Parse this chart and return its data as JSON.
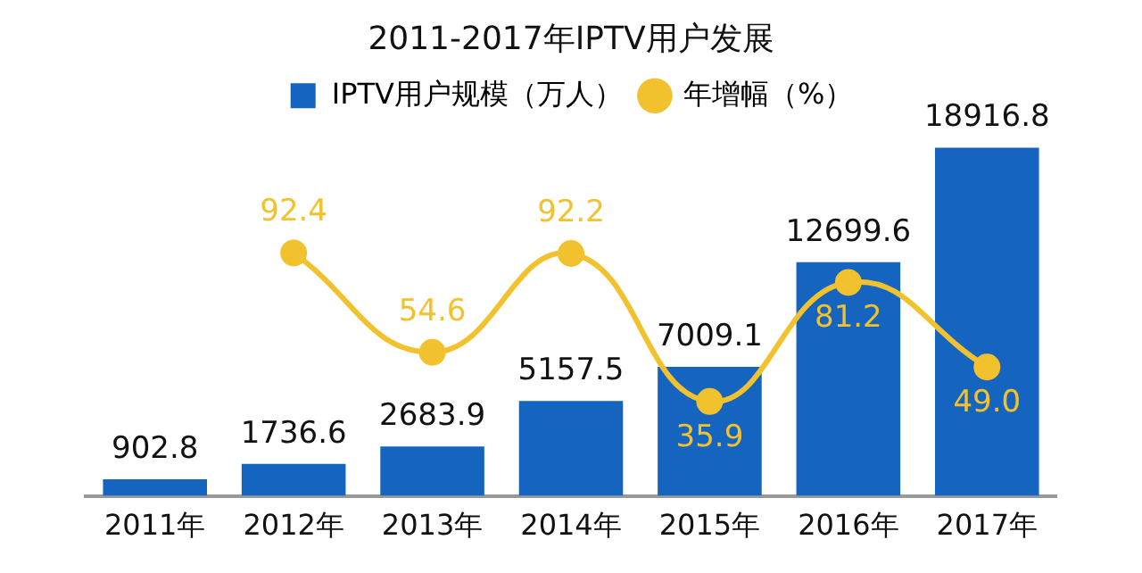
{
  "chart_data": {
    "type": "bar",
    "title": "2011-2017年IPTV用户发展",
    "categories": [
      "2011年",
      "2012年",
      "2013年",
      "2014年",
      "2015年",
      "2016年",
      "2017年"
    ],
    "series": [
      {
        "name": "IPTV用户规模（万人）",
        "color": "#1565c0",
        "values": [
          902.8,
          1736.6,
          2683.9,
          5157.5,
          7009.1,
          12699.6,
          18916.8
        ]
      },
      {
        "name": "年增幅（%）",
        "type": "line",
        "axis": "y2",
        "color": "#f2c12e",
        "marker": "circle",
        "values": [
          null,
          92.4,
          54.6,
          92.2,
          35.9,
          81.2,
          49.0
        ],
        "value_labels": [
          null,
          "92.4",
          "54.6",
          "92.2",
          "35.9",
          "81.2",
          "49.0"
        ]
      }
    ],
    "data_labels": true,
    "legend": "top",
    "grid": false,
    "tick_labels": "x"
  }
}
